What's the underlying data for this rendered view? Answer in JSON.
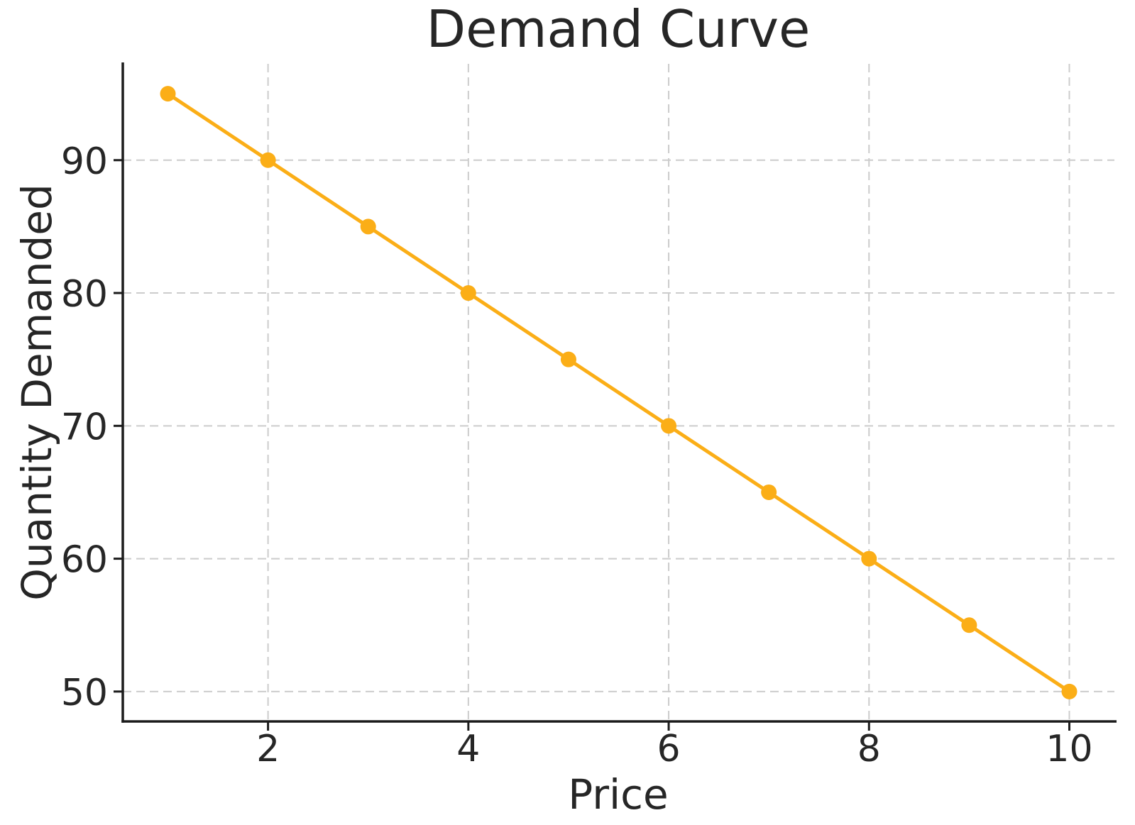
{
  "chart_data": {
    "type": "line",
    "title": "Demand Curve",
    "xlabel": "Price",
    "ylabel": "Quantity Demanded",
    "x": [
      1,
      2,
      3,
      4,
      5,
      6,
      7,
      8,
      9,
      10
    ],
    "series": [
      {
        "name": "Quantity Demanded",
        "values": [
          95,
          90,
          85,
          80,
          75,
          70,
          65,
          60,
          55,
          50
        ]
      }
    ],
    "xticks": [
      2,
      4,
      6,
      8,
      10
    ],
    "yticks": [
      50,
      60,
      70,
      80,
      90
    ],
    "xlim": [
      0.55,
      10.45
    ],
    "ylim": [
      47.75,
      97.25
    ],
    "grid": true,
    "grid_style": "dashed",
    "legend_position": "none",
    "line_color": "#FBAE17",
    "marker": "circle",
    "marker_color": "#FBAE17",
    "grid_color": "#cccccc",
    "spine_color": "#1c1c1c",
    "tick_color": "#1c1c1c",
    "text_color": "#262626",
    "background_color": "#ffffff"
  }
}
